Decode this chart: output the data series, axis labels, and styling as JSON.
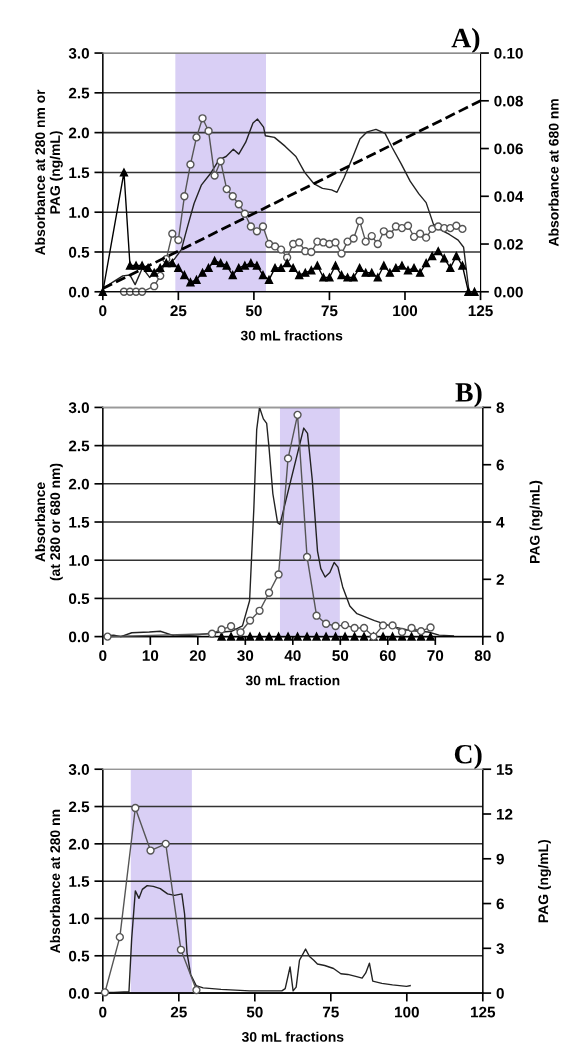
{
  "chart_data": [
    {
      "type": "line",
      "title": "A)",
      "xlabel": "30 mL fractions",
      "ylabel": "Absorbance at 280 nm or\nPAG (ng/mL)",
      "y2label": "Absorbance at 680 nm",
      "xlim": [
        0,
        125
      ],
      "xticks": [
        0,
        25,
        50,
        75,
        100,
        125
      ],
      "ylim": [
        0,
        3
      ],
      "yticks": [
        {
          "value": 0,
          "label": "0.0"
        },
        {
          "value": 0.5,
          "label": "0.5"
        },
        {
          "value": 1,
          "label": "1.0"
        },
        {
          "value": 1.5,
          "label": "1.5"
        },
        {
          "value": 2,
          "label": "2.0"
        },
        {
          "value": 2.5,
          "label": "2.5"
        },
        {
          "value": 3,
          "label": "3.0"
        }
      ],
      "y2lim": [
        0,
        0.1
      ],
      "y2ticks": [
        {
          "value": 0,
          "label": "0.00"
        },
        {
          "value": 0.02,
          "label": "0.02"
        },
        {
          "value": 0.04,
          "label": "0.04"
        },
        {
          "value": 0.06,
          "label": "0.06"
        },
        {
          "value": 0.08,
          "label": "0.08"
        },
        {
          "value": 0.1,
          "label": "0.10"
        }
      ],
      "grid": "y",
      "bands": [
        {
          "axis": "x",
          "from": 24,
          "to": 54,
          "color": "#d9cff5"
        }
      ],
      "series": [
        {
          "color": "#222222",
          "marker": "none",
          "line_style": "solid",
          "x": [
            0,
            3.7,
            6.6,
            9,
            10.7,
            13.1,
            15.5,
            17.8,
            20.8,
            23.7,
            26,
            27.9,
            30.2,
            32.6,
            35.5,
            38.5,
            40.8,
            43.2,
            45,
            47.3,
            49.7,
            51.2,
            53.2,
            53.8,
            56.8,
            60.3,
            63.9,
            66.8,
            69.8,
            72.7,
            75.7,
            77.5,
            79.8,
            82.8,
            85.1,
            87.5,
            90.4,
            93.4,
            95.8,
            98.7,
            101.7,
            104.6,
            107,
            109.4,
            111.7,
            114.7,
            117.6,
            119.4,
            121.2
          ],
          "values": [
            0.04,
            0.13,
            0.2,
            0.21,
            0.09,
            0.3,
            0.18,
            0.28,
            0.33,
            0.41,
            0.53,
            0.8,
            1.11,
            1.34,
            1.48,
            1.66,
            1.7,
            1.79,
            1.73,
            1.88,
            2.12,
            2.17,
            2.07,
            1.96,
            1.94,
            1.83,
            1.7,
            1.5,
            1.36,
            1.3,
            1.28,
            1.25,
            1.43,
            1.7,
            1.92,
            2.01,
            2.04,
            1.99,
            1.81,
            1.61,
            1.39,
            1.23,
            1.12,
            0.85,
            0.78,
            0.72,
            0.65,
            0.56,
            0.0
          ]
        },
        {
          "color": "#555555",
          "marker": "circle",
          "line_style": "solid",
          "x": [
            7,
            9,
            11,
            13,
            17,
            19,
            21,
            23,
            25,
            27,
            29,
            31,
            33,
            35,
            37,
            39,
            41,
            43,
            45,
            47,
            49,
            51,
            53,
            55,
            57,
            59,
            61,
            63,
            65,
            67,
            69,
            71,
            73,
            75,
            77,
            79,
            81,
            83,
            85,
            87,
            89,
            91,
            93,
            95,
            97,
            99,
            101,
            103,
            105,
            107,
            109,
            111,
            113,
            115,
            117,
            119
          ],
          "values": [
            0,
            0,
            0,
            0,
            0.07,
            0.2,
            0.41,
            0.73,
            0.65,
            1.2,
            1.6,
            1.94,
            2.18,
            2.02,
            1.46,
            1.64,
            1.29,
            1.2,
            1.1,
            0.98,
            0.82,
            0.76,
            0.82,
            0.6,
            0.57,
            0.53,
            0.43,
            0.6,
            0.62,
            0.51,
            0.5,
            0.63,
            0.62,
            0.6,
            0.62,
            0.48,
            0.63,
            0.67,
            0.89,
            0.63,
            0.7,
            0.6,
            0.76,
            0.72,
            0.82,
            0.8,
            0.83,
            0.69,
            0.73,
            0.68,
            0.79,
            0.82,
            0.8,
            0.8,
            0.83,
            0.79
          ]
        },
        {
          "color": "#000000",
          "marker": "triangle",
          "line_style": "solid",
          "axis": "y2",
          "x": [
            0,
            7,
            9,
            11,
            13,
            15,
            17,
            19,
            21,
            23,
            25,
            27,
            29,
            31,
            33,
            35,
            37,
            39,
            41,
            43,
            45,
            47,
            49,
            51,
            53,
            55,
            57,
            59,
            61,
            63,
            65,
            67,
            69,
            71,
            73,
            75,
            77,
            79,
            81,
            83,
            85,
            87,
            89,
            91,
            93,
            95,
            97,
            99,
            101,
            103,
            105,
            107,
            109,
            111,
            113,
            115,
            117,
            119,
            121,
            123
          ],
          "values": [
            0,
            0.05,
            0.011,
            0.011,
            0.011,
            0.01,
            0.008,
            0.01,
            0.012,
            0.012,
            0.01,
            0.007,
            0.004,
            0.005,
            0.008,
            0.01,
            0.013,
            0.012,
            0.011,
            0.007,
            0.01,
            0.011,
            0.012,
            0.011,
            0.007,
            0.005,
            0.01,
            0.01,
            0.012,
            0.01,
            0.007,
            0.008,
            0.009,
            0.011,
            0.006,
            0.006,
            0.011,
            0.007,
            0.006,
            0.006,
            0.01,
            0.008,
            0.008,
            0.006,
            0.011,
            0.008,
            0.01,
            0.011,
            0.009,
            0.01,
            0.008,
            0.012,
            0.015,
            0.017,
            0.014,
            0.01,
            0.015,
            0.011,
            0,
            0
          ]
        },
        {
          "color": "#000000",
          "marker": "none",
          "line_style": "dashed",
          "x": [
            0,
            125
          ],
          "values": [
            0.04,
            2.4
          ]
        }
      ]
    },
    {
      "type": "line",
      "title": "B)",
      "xlabel": "30 mL fraction",
      "ylabel": "Absorbance\n(at 280 or 680 nm)",
      "y2label": "PAG (ng/mL)",
      "xlim": [
        0,
        80
      ],
      "xticks": [
        0,
        10,
        20,
        30,
        40,
        50,
        60,
        70,
        80
      ],
      "ylim": [
        0,
        3
      ],
      "yticks": [
        {
          "value": 0,
          "label": "0.0"
        },
        {
          "value": 0.5,
          "label": "0.5"
        },
        {
          "value": 1,
          "label": "1.0"
        },
        {
          "value": 1.5,
          "label": "1.5"
        },
        {
          "value": 2,
          "label": "2.0"
        },
        {
          "value": 2.5,
          "label": "2.5"
        },
        {
          "value": 3,
          "label": "3.0"
        }
      ],
      "y2lim": [
        0,
        8
      ],
      "y2ticks": [
        0,
        2,
        4,
        6,
        8
      ],
      "grid": "y",
      "bands": [
        {
          "axis": "x",
          "from": 37.3,
          "to": 49.9,
          "color": "#d9cff5"
        }
      ],
      "series": [
        {
          "color": "#222222",
          "marker": "none",
          "line_style": "solid",
          "x": [
            0,
            2.3,
            3.8,
            6.1,
            9.8,
            12.1,
            15.1,
            19.6,
            23.4,
            27.1,
            29.4,
            30.9,
            31.8,
            32.4,
            33,
            33.8,
            34.5,
            35,
            35.8,
            36.8,
            37.3,
            42.3,
            43.1,
            44.1,
            45.2,
            45.9,
            46.8,
            47.8,
            48.7,
            49.5,
            50.5,
            52,
            53.5,
            57.2,
            61,
            64.7,
            68.5,
            70.8,
            73.8
          ],
          "values": [
            0.01,
            0.02,
            0,
            0.05,
            0.06,
            0.07,
            0.01,
            0.02,
            0.05,
            0.07,
            0.14,
            0.47,
            1.68,
            2.71,
            3.0,
            2.85,
            2.79,
            2.47,
            1.87,
            1.49,
            1.47,
            2.73,
            2.66,
            2.05,
            1.12,
            0.89,
            0.78,
            0.84,
            0.97,
            0.91,
            0.65,
            0.4,
            0.3,
            0.21,
            0.13,
            0.08,
            0.06,
            0.02,
            0.01
          ]
        },
        {
          "color": "#555555",
          "marker": "circle",
          "line_style": "solid",
          "axis": "y2",
          "x": [
            1,
            23,
            25,
            27,
            29,
            31,
            33,
            35,
            37,
            39,
            41,
            43,
            45,
            47,
            49,
            51,
            53,
            55,
            57,
            59,
            61,
            63,
            65,
            67,
            69
          ],
          "values": [
            0,
            0.1,
            0.25,
            0.36,
            0.15,
            0.56,
            0.9,
            1.53,
            2.17,
            6.22,
            7.74,
            2.78,
            0.73,
            0.45,
            0.37,
            0.4,
            0.3,
            0.3,
            0,
            0.39,
            0.39,
            0.16,
            0.3,
            0.19,
            0.32
          ]
        },
        {
          "color": "#000000",
          "marker": "triangle",
          "line_style": "solid",
          "x": [
            25,
            27,
            29,
            31,
            33,
            35,
            37,
            39,
            41,
            43,
            45,
            47,
            49,
            51,
            53,
            55,
            57,
            59,
            61,
            63,
            65,
            67,
            69
          ],
          "values": [
            0,
            0,
            0,
            0,
            0,
            0,
            0,
            0,
            0,
            0,
            0,
            0,
            0,
            0,
            0,
            0,
            0,
            0,
            0,
            0,
            0,
            0,
            0
          ]
        }
      ]
    },
    {
      "type": "line",
      "title": "C)",
      "xlabel": "30 mL fractions",
      "ylabel": "Absorbance at 280 nn",
      "y2label": "PAG (ng/mL)",
      "xlim": [
        0,
        125
      ],
      "xticks": [
        0,
        25,
        50,
        75,
        100,
        125
      ],
      "ylim": [
        0,
        3
      ],
      "yticks": [
        {
          "value": 0,
          "label": "0.0"
        },
        {
          "value": 0.5,
          "label": "0.5"
        },
        {
          "value": 1,
          "label": "1.0"
        },
        {
          "value": 1.5,
          "label": "1.5"
        },
        {
          "value": 2,
          "label": "2.0"
        },
        {
          "value": 2.5,
          "label": "2.5"
        },
        {
          "value": 3,
          "label": "3.0"
        }
      ],
      "y2lim": [
        0,
        15
      ],
      "y2ticks": [
        0,
        3,
        6,
        9,
        12,
        15
      ],
      "grid": "y",
      "bands": [
        {
          "axis": "x",
          "from": 9.2,
          "to": 29.3,
          "color": "#d9cff5"
        }
      ],
      "series": [
        {
          "color": "#222222",
          "marker": "none",
          "line_style": "solid",
          "x": [
            0,
            3.6,
            8.6,
            9.5,
            10.7,
            11.9,
            13,
            14.6,
            16.6,
            18.9,
            21.3,
            23.6,
            26,
            26.9,
            27.7,
            28.9,
            30.7,
            33,
            38.9,
            48.3,
            58.9,
            60,
            61.6,
            62.6,
            63.6,
            64.7,
            66.7,
            68,
            69.4,
            70.6,
            73,
            75.9,
            78.3,
            80.6,
            83.5,
            85.3,
            86.5,
            87.7,
            88.8,
            91.8,
            95.3,
            99.9,
            101.1
          ],
          "values": [
            0.01,
            0.01,
            0.02,
            0.73,
            1.37,
            1.27,
            1.39,
            1.44,
            1.43,
            1.4,
            1.33,
            1.31,
            1.33,
            1.06,
            0.54,
            0.25,
            0.1,
            0.07,
            0.05,
            0.03,
            0.03,
            0.06,
            0.35,
            0.03,
            0.08,
            0.44,
            0.59,
            0.49,
            0.44,
            0.39,
            0.37,
            0.33,
            0.26,
            0.25,
            0.22,
            0.2,
            0.27,
            0.4,
            0.16,
            0.13,
            0.11,
            0.09,
            0.1
          ]
        },
        {
          "color": "#555555",
          "marker": "circle",
          "line_style": "solid",
          "axis": "y2",
          "x": [
            0.7,
            5.6,
            10.7,
            15.7,
            20.7,
            25.7,
            30.8
          ],
          "values": [
            0.05,
            3.75,
            12.4,
            9.55,
            10.0,
            2.9,
            0.2
          ]
        }
      ]
    }
  ]
}
